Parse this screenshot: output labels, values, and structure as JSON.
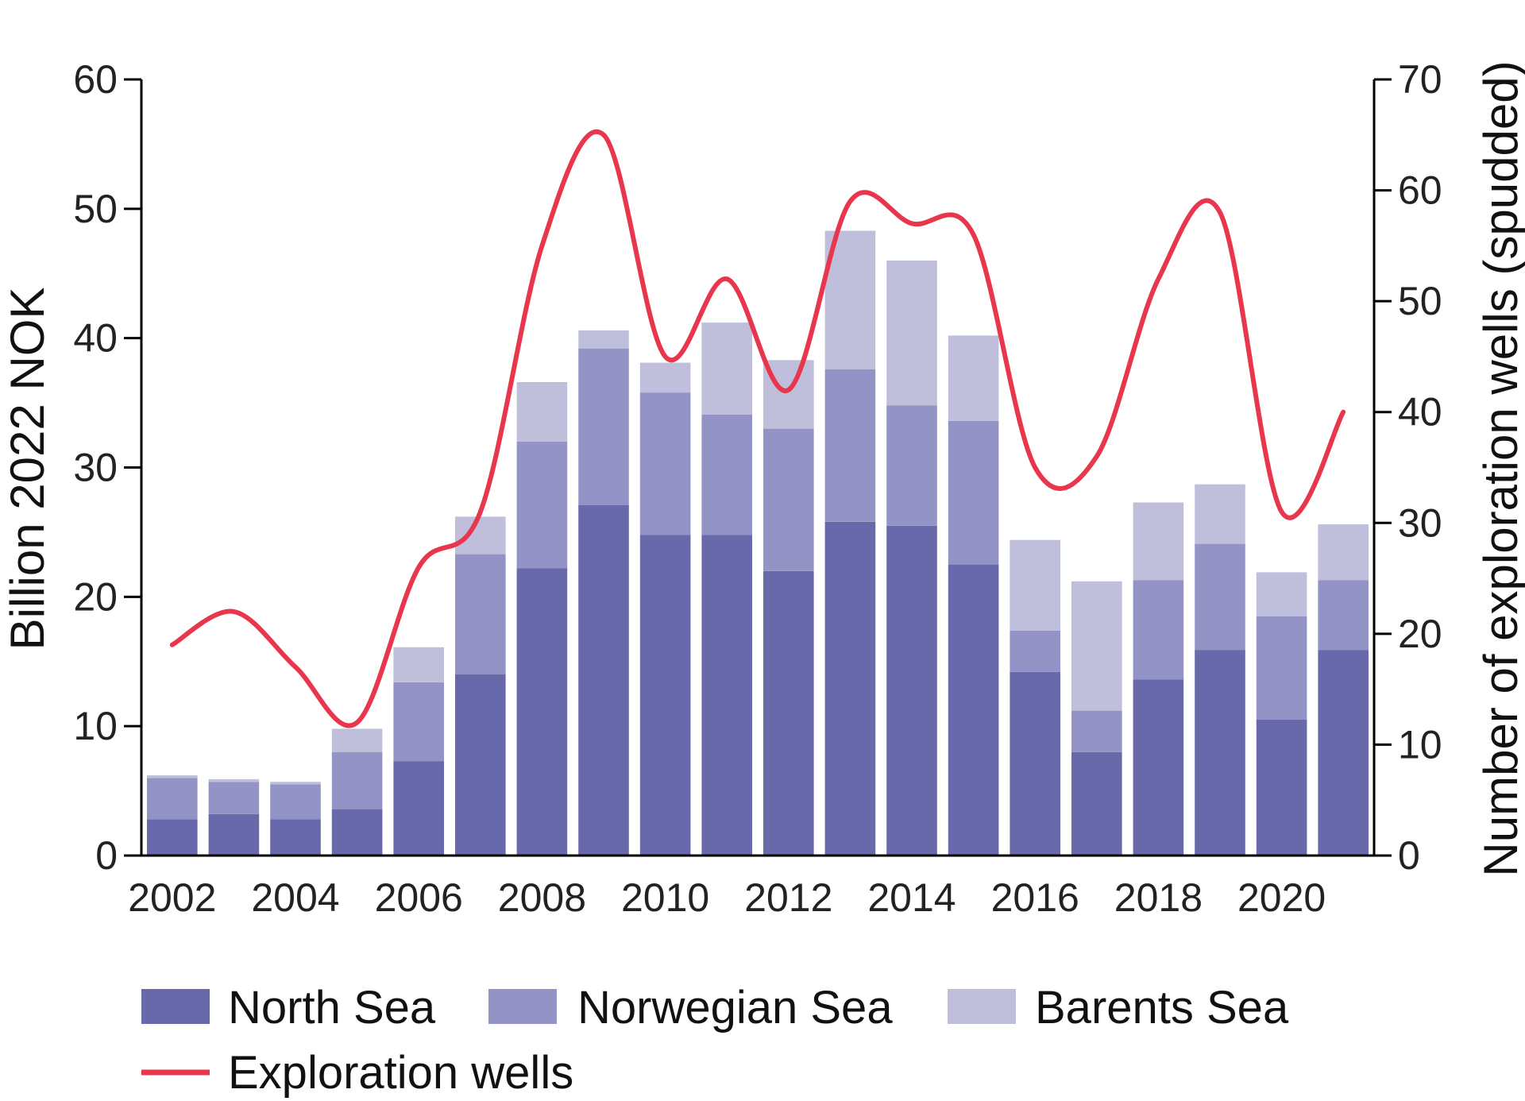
{
  "chart_data": {
    "type": "bar",
    "stacked": true,
    "categories": [
      2002,
      2003,
      2004,
      2005,
      2006,
      2007,
      2008,
      2009,
      2010,
      2011,
      2012,
      2013,
      2014,
      2015,
      2016,
      2017,
      2018,
      2019,
      2020,
      2021
    ],
    "x_tick_labels": [
      "2002",
      "2004",
      "2006",
      "2008",
      "2010",
      "2012",
      "2014",
      "2016",
      "2018",
      "2020"
    ],
    "series": [
      {
        "name": "North Sea",
        "color": "#6869aa",
        "values": [
          2.8,
          3.2,
          2.8,
          3.6,
          7.3,
          14.0,
          22.2,
          27.1,
          24.8,
          24.8,
          22.0,
          25.8,
          25.5,
          22.5,
          14.2,
          8.0,
          13.6,
          15.9,
          10.5,
          15.9
        ]
      },
      {
        "name": "Norwegian Sea",
        "color": "#9394c5",
        "values": [
          3.2,
          2.5,
          2.7,
          4.4,
          6.1,
          9.3,
          9.8,
          12.1,
          11.0,
          9.3,
          11.0,
          11.8,
          9.3,
          11.1,
          3.2,
          3.2,
          7.7,
          8.2,
          8.0,
          5.4
        ]
      },
      {
        "name": "Barents Sea",
        "color": "#bfbfdc",
        "values": [
          0.2,
          0.2,
          0.2,
          1.8,
          2.7,
          2.9,
          4.6,
          1.4,
          2.3,
          7.1,
          5.3,
          10.7,
          11.2,
          6.6,
          7.0,
          10.0,
          6.0,
          4.6,
          3.4,
          4.3
        ]
      }
    ],
    "line_series": {
      "name": "Exploration wells",
      "color": "#e8374d",
      "axis": "right",
      "values": [
        19,
        22,
        17,
        12,
        26,
        31,
        55,
        65,
        45,
        52,
        42,
        59,
        57,
        56,
        35,
        36,
        52,
        58,
        31,
        40
      ]
    },
    "left_axis": {
      "label": "Billion 2022 NOK",
      "ylim": [
        0,
        60
      ],
      "ticks": [
        "0",
        "10",
        "20",
        "30",
        "40",
        "50",
        "60"
      ]
    },
    "right_axis": {
      "label": "Number of exploration wells (spudded)",
      "ylim": [
        0,
        70
      ],
      "ticks": [
        "0",
        "10",
        "20",
        "30",
        "40",
        "50",
        "60",
        "70"
      ]
    },
    "grid": false,
    "legend_position": "bottom",
    "legend": {
      "north_sea": "North Sea",
      "norwegian_sea": "Norwegian Sea",
      "barents_sea": "Barents Sea",
      "exploration_wells": "Exploration wells"
    }
  }
}
